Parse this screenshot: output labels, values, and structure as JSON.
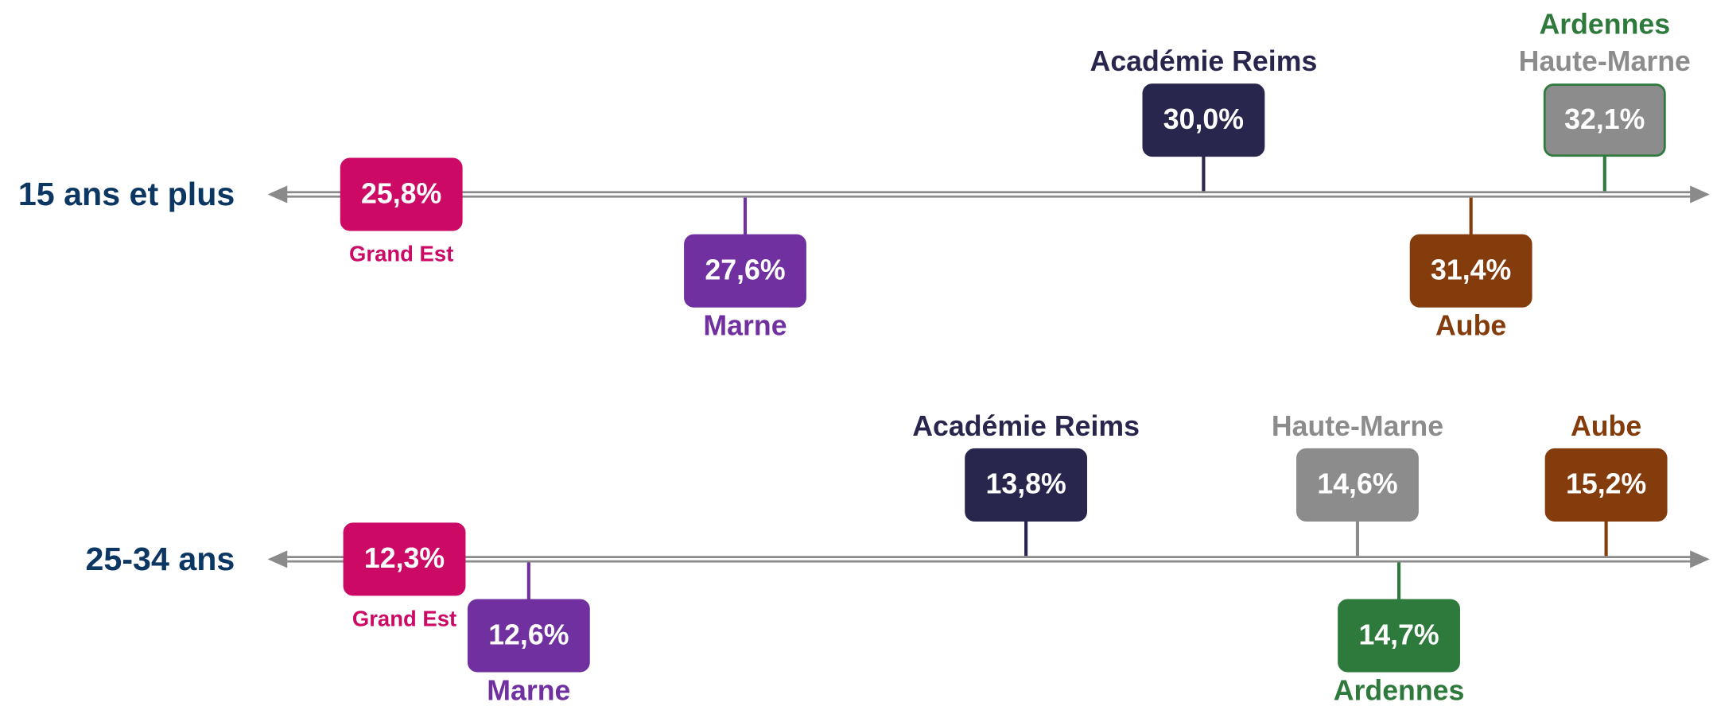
{
  "chart_data": {
    "type": "dotline",
    "rows": [
      {
        "label": "15 ans et plus",
        "xlim": [
          25.1,
          32.65
        ],
        "items": [
          {
            "name": "Grand Est",
            "value": 25.8,
            "value_label": "25,8%",
            "color": "#cc0a66"
          },
          {
            "name": "Marne",
            "value": 27.6,
            "value_label": "27,6%",
            "color": "#7030a0"
          },
          {
            "name": "Académie Reims",
            "value": 30.0,
            "value_label": "30,0%",
            "color": "#29264d"
          },
          {
            "name": "Aube",
            "value": 31.4,
            "value_label": "31,4%",
            "color": "#843c0c"
          },
          {
            "name": "Ardennes",
            "value": 32.1,
            "value_label": "32,1%",
            "color": "#2e7a3c"
          },
          {
            "name": "Haute-Marne",
            "value": 32.1,
            "value_label": "32,1%",
            "color": "#8c8c8c"
          }
        ]
      },
      {
        "label": "25-34 ans",
        "xlim": [
          11.97,
          15.45
        ],
        "items": [
          {
            "name": "Grand Est",
            "value": 12.3,
            "value_label": "12,3%",
            "color": "#cc0a66"
          },
          {
            "name": "Marne",
            "value": 12.6,
            "value_label": "12,6%",
            "color": "#7030a0"
          },
          {
            "name": "Académie Reims",
            "value": 13.8,
            "value_label": "13,8%",
            "color": "#29264d"
          },
          {
            "name": "Haute-Marne",
            "value": 14.6,
            "value_label": "14,6%",
            "color": "#8c8c8c"
          },
          {
            "name": "Ardennes",
            "value": 14.7,
            "value_label": "14,7%",
            "color": "#2e7a3c"
          },
          {
            "name": "Aube",
            "value": 15.2,
            "value_label": "15,2%",
            "color": "#843c0c"
          }
        ]
      }
    ]
  }
}
